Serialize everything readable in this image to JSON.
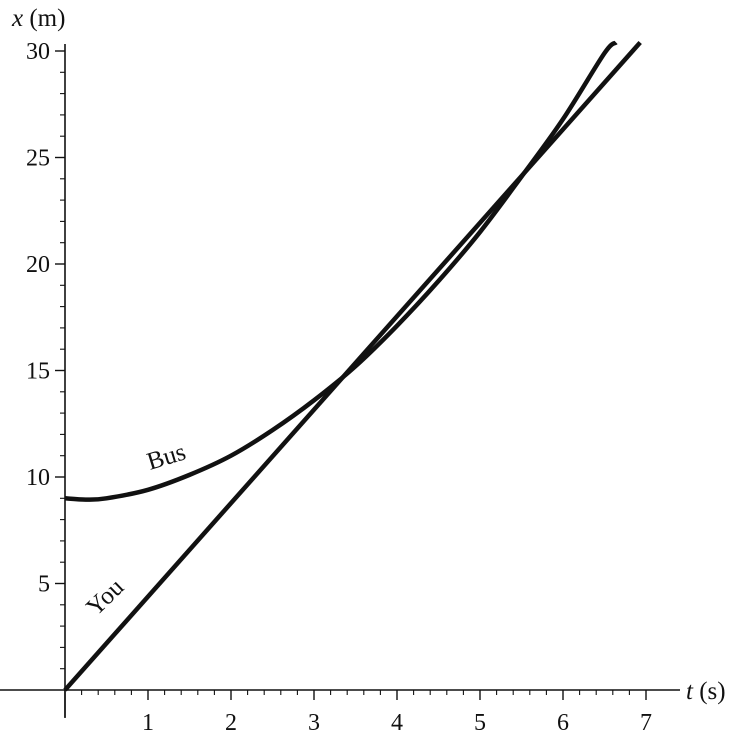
{
  "chart_data": {
    "type": "line",
    "title": "",
    "x_axis": {
      "var": "t",
      "unit": "(s)",
      "range": [
        0,
        7.4
      ],
      "ticks": [
        "1",
        "2",
        "3",
        "4",
        "5",
        "6",
        "7"
      ]
    },
    "y_axis": {
      "var": "x",
      "unit": "(m)",
      "range": [
        0,
        30.3
      ],
      "ticks": [
        "5",
        "10",
        "15",
        "20",
        "25",
        "30"
      ]
    },
    "grid": false,
    "legend": "none",
    "series": [
      {
        "name": "Bus",
        "points": [
          [
            0,
            9.0
          ],
          [
            0.25,
            8.94
          ],
          [
            0.5,
            9.0
          ],
          [
            1,
            9.4
          ],
          [
            1.5,
            10.1
          ],
          [
            2,
            11.0
          ],
          [
            2.5,
            12.2
          ],
          [
            3,
            13.6
          ],
          [
            3.5,
            15.2
          ],
          [
            4,
            17.1
          ],
          [
            4.5,
            19.2
          ],
          [
            5,
            21.5
          ],
          [
            5.5,
            24.1
          ],
          [
            6,
            26.8
          ],
          [
            6.5,
            29.9
          ],
          [
            6.64,
            30.4
          ]
        ]
      },
      {
        "name": "You",
        "points": [
          [
            0,
            0
          ],
          [
            6.93,
            30.4
          ]
        ]
      }
    ]
  }
}
